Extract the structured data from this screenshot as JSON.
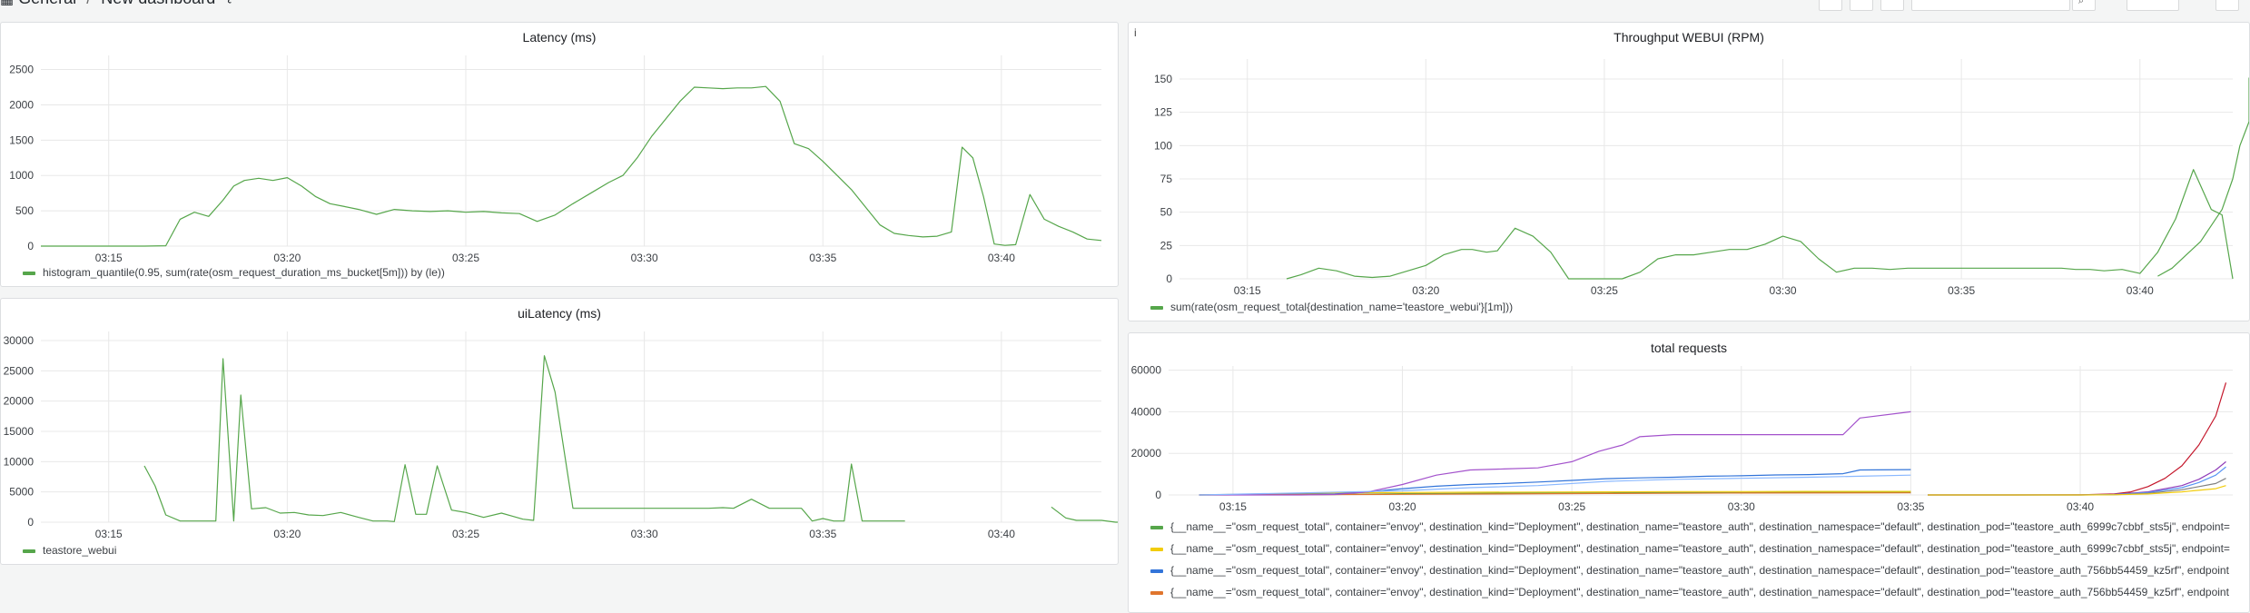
{
  "header": {
    "breadcrumb_folder": "General",
    "breadcrumb_separator": "/",
    "breadcrumb_title": "New dashboard",
    "share_icon": "share-icon",
    "search_icon": "search-icon"
  },
  "panels": {
    "latency": {
      "title": "Latency (ms)",
      "legend": "histogram_quantile(0.95, sum(rate(osm_request_duration_ms_bucket[5m])) by (le))"
    },
    "throughput": {
      "info": "i",
      "title": "Throughput WEBUI (RPM)",
      "legend": "sum(rate(osm_request_total{destination_name='teastore_webui'}[1m]))"
    },
    "uilatency": {
      "title": "uiLatency (ms)",
      "legend": "teastore_webui"
    },
    "total": {
      "title": "total requests",
      "legends": [
        "{__name__=\"osm_request_total\", container=\"envoy\", destination_kind=\"Deployment\", destination_name=\"teastore_auth\", destination_namespace=\"default\", destination_pod=\"teastore_auth_6999c7cbbf_sts5j\", endpoint=",
        "{__name__=\"osm_request_total\", container=\"envoy\", destination_kind=\"Deployment\", destination_name=\"teastore_auth\", destination_namespace=\"default\", destination_pod=\"teastore_auth_6999c7cbbf_sts5j\", endpoint=",
        "{__name__=\"osm_request_total\", container=\"envoy\", destination_kind=\"Deployment\", destination_name=\"teastore_auth\", destination_namespace=\"default\", destination_pod=\"teastore_auth_756bb54459_kz5rf\", endpoint",
        "{__name__=\"osm_request_total\", container=\"envoy\", destination_kind=\"Deployment\", destination_name=\"teastore_auth\", destination_namespace=\"default\", destination_pod=\"teastore_auth_756bb54459_kz5rf\", endpoint"
      ],
      "legend_colors": [
        "#56a64b",
        "#f2cc0c",
        "#3274d9",
        "#e0752d"
      ]
    }
  },
  "chart_data": [
    {
      "type": "line",
      "title": "Latency (ms)",
      "xlabel": "",
      "ylabel": "",
      "x_ticks": [
        "03:15",
        "03:20",
        "03:25",
        "03:30",
        "03:35",
        "03:40"
      ],
      "y_ticks": [
        0,
        500,
        1000,
        1500,
        2000,
        2500
      ],
      "ylim": [
        0,
        2700
      ],
      "xlim": [
        13.1,
        42.8
      ],
      "grid": true,
      "legend_position": "bottom-left",
      "series": [
        {
          "name": "histogram_quantile(0.95, sum(rate(osm_request_duration_ms_bucket[5m])) by (le))",
          "color": "#56a64b",
          "x": [
            13.1,
            15.0,
            16.0,
            16.6,
            17.0,
            17.4,
            17.8,
            18.2,
            18.5,
            18.8,
            19.2,
            19.6,
            20.0,
            20.4,
            20.8,
            21.2,
            21.6,
            22.0,
            22.5,
            23.0,
            23.5,
            24.0,
            24.5,
            25.0,
            25.5,
            26.0,
            26.5,
            27.0,
            27.5,
            28.0,
            28.5,
            29.0,
            29.4,
            29.8,
            30.2,
            30.6,
            31.0,
            31.4,
            31.8,
            32.2,
            32.6,
            33.0,
            33.4,
            33.8,
            34.2,
            34.6,
            35.0,
            35.4,
            35.8,
            36.2,
            36.6,
            37.0,
            37.4,
            37.8,
            38.2,
            38.6,
            38.9,
            39.2,
            39.5,
            39.8,
            40.1,
            40.4,
            40.8,
            41.2,
            41.6,
            42.0,
            42.4,
            42.8
          ],
          "values": [
            0,
            0,
            0,
            5,
            380,
            480,
            420,
            650,
            850,
            930,
            960,
            930,
            970,
            850,
            700,
            600,
            560,
            520,
            450,
            520,
            500,
            490,
            500,
            480,
            490,
            470,
            460,
            350,
            440,
            600,
            750,
            900,
            1000,
            1250,
            1550,
            1800,
            2050,
            2250,
            2240,
            2230,
            2240,
            2240,
            2260,
            2050,
            1450,
            1380,
            1200,
            1000,
            800,
            550,
            300,
            180,
            150,
            130,
            140,
            200,
            1400,
            1250,
            700,
            30,
            10,
            20,
            730,
            380,
            280,
            200,
            100,
            80
          ]
        }
      ]
    },
    {
      "type": "line",
      "title": "Throughput WEBUI (RPM)",
      "xlabel": "",
      "ylabel": "",
      "x_ticks": [
        "03:15",
        "03:20",
        "03:25",
        "03:30",
        "03:35",
        "03:40"
      ],
      "y_ticks": [
        0,
        25,
        50,
        75,
        100,
        125,
        150
      ],
      "ylim": [
        0,
        165
      ],
      "xlim": [
        13.1,
        42.6
      ],
      "grid": true,
      "legend_position": "bottom-left",
      "series": [
        {
          "name": "sum(rate(osm_request_total{destination_name='teastore_webui'}[1m]))",
          "color": "#56a64b",
          "segments": [
            {
              "x": [
                16.1,
                16.5,
                17.0,
                17.5,
                18.0,
                18.5,
                19.0,
                19.5,
                20.0,
                20.5,
                21.0,
                21.3,
                21.7,
                22.0,
                22.5,
                23.0,
                23.5,
                24.0,
                24.5,
                25.0,
                25.5,
                26.0,
                26.5,
                27.0,
                27.5,
                28.0,
                28.5,
                29.0,
                29.5,
                30.0,
                30.5,
                31.0,
                31.5,
                32.0,
                32.5,
                33.0,
                33.5,
                34.0,
                34.5,
                35.0,
                35.5,
                36.0,
                36.5,
                37.0,
                37.5,
                37.8,
                38.2,
                38.6,
                39.0,
                39.5,
                40.0,
                40.5,
                41.0,
                41.5,
                42.0,
                42.3,
                42.6
              ],
              "values": [
                0,
                3,
                8,
                6,
                2,
                1,
                2,
                6,
                10,
                18,
                22,
                22,
                20,
                21,
                38,
                32,
                20,
                0,
                0,
                0,
                0,
                5,
                15,
                18,
                18,
                20,
                22,
                22,
                26,
                32,
                28,
                15,
                5,
                8,
                8,
                7,
                8,
                8,
                8,
                8,
                8,
                8,
                8,
                8,
                8,
                8,
                7,
                7,
                6,
                7,
                4,
                20,
                45,
                82,
                52,
                48,
                0
              ]
            },
            {
              "x": [
                40.5,
                40.9,
                41.3,
                41.7,
                42.0,
                42.3,
                42.6,
                42.8,
                43.2,
                43.6,
                43.9,
                44.1,
                44.2
              ],
              "values": [
                2,
                8,
                18,
                28,
                40,
                52,
                75,
                100,
                118,
                140,
                150,
                151,
                151
              ]
            }
          ]
        }
      ]
    },
    {
      "type": "line",
      "title": "uiLatency (ms)",
      "xlabel": "",
      "ylabel": "",
      "x_ticks": [
        "03:15",
        "03:20",
        "03:25",
        "03:30",
        "03:35",
        "03:40"
      ],
      "y_ticks": [
        0,
        5000,
        10000,
        15000,
        20000,
        25000,
        30000
      ],
      "ylim": [
        0,
        31500
      ],
      "xlim": [
        13.1,
        42.8
      ],
      "grid": true,
      "legend_position": "bottom-left",
      "series": [
        {
          "name": "teastore_webui",
          "color": "#56a64b",
          "segments": [
            {
              "x": [
                16.0,
                16.3,
                16.6,
                17.0,
                17.4,
                17.8,
                18.0,
                18.2,
                18.5,
                18.7,
                19.0,
                19.4,
                19.8,
                20.2,
                20.6,
                21.0,
                21.5,
                22.0,
                22.4,
                22.8,
                23.0,
                23.3,
                23.6,
                23.9,
                24.2,
                24.6,
                25.0,
                25.5,
                26.0,
                26.3,
                26.6,
                26.9,
                27.2,
                27.5,
                28.0,
                29.0,
                30.0,
                31.0,
                31.5,
                31.8,
                32.2,
                32.5,
                33.0,
                33.5,
                33.8,
                34.1,
                34.4,
                34.7,
                35.0,
                35.3,
                35.6,
                35.8,
                36.1,
                36.5,
                36.9,
                37.3
              ],
              "values": [
                9300,
                6000,
                1200,
                200,
                200,
                200,
                200,
                27000,
                200,
                21000,
                2200,
                2400,
                1500,
                1600,
                1200,
                1100,
                1600,
                800,
                200,
                200,
                100,
                9500,
                1300,
                1300,
                9300,
                2000,
                1600,
                800,
                1500,
                1000,
                500,
                300,
                27500,
                21500,
                2300,
                2300,
                2300,
                2300,
                2300,
                2300,
                2400,
                2300,
                3800,
                2300,
                2300,
                2300,
                2300,
                200,
                600,
                200,
                200,
                9600,
                200,
                200,
                200,
                200
              ]
            },
            {
              "x": [
                41.4,
                41.8,
                42.1,
                42.4,
                42.8,
                43.2,
                43.6,
                44.0
              ],
              "values": [
                2500,
                700,
                300,
                300,
                300,
                0,
                0,
                0
              ]
            }
          ]
        }
      ]
    },
    {
      "type": "line",
      "title": "total requests",
      "xlabel": "",
      "ylabel": "",
      "x_ticks": [
        "03:15",
        "03:20",
        "03:25",
        "03:30",
        "03:35",
        "03:40"
      ],
      "y_ticks": [
        0,
        20000,
        40000,
        60000
      ],
      "ylim": [
        0,
        62000
      ],
      "xlim": [
        13.1,
        44.5
      ],
      "grid": true,
      "legend_position": "bottom-left",
      "series": [
        {
          "color": "#56a64b",
          "x": [
            14.0,
            18.0,
            20.0,
            22.0,
            24.0,
            26.0,
            28.0,
            30.0,
            32.0,
            34.0,
            35.0
          ],
          "values": [
            0,
            200,
            600,
            800,
            900,
            1000,
            1200,
            1200,
            1300,
            1300,
            1300
          ]
        },
        {
          "color": "#f2cc0c",
          "x": [
            14.0,
            17.0,
            18.0,
            20.0,
            22.0,
            24.0,
            26.0,
            28.0,
            30.0,
            32.0,
            34.0,
            35.0
          ],
          "values": [
            0,
            800,
            1000,
            1200,
            1300,
            1400,
            1500,
            1600,
            1600,
            1700,
            1700,
            1700
          ]
        },
        {
          "color": "#3274d9",
          "x": [
            14.0,
            18.0,
            19.0,
            20.0,
            21.0,
            22.0,
            23.0,
            24.0,
            25.0,
            26.0,
            27.0,
            28.0,
            29.0,
            30.0,
            31.0,
            32.0,
            33.0,
            33.5,
            35.0
          ],
          "values": [
            0,
            500,
            1500,
            3000,
            4200,
            5000,
            5500,
            6200,
            7000,
            7800,
            8200,
            8500,
            9000,
            9200,
            9600,
            9800,
            10200,
            12000,
            12200
          ]
        },
        {
          "color": "#e0752d",
          "x": [
            14.0,
            20.0,
            26.0,
            30.0,
            35.0
          ],
          "values": [
            0,
            300,
            700,
            900,
            1000
          ]
        },
        {
          "color": "#a352cc",
          "x": [
            14.0,
            17.0,
            18.0,
            19.0,
            20.0,
            21.0,
            22.0,
            23.0,
            24.0,
            25.0,
            25.8,
            26.5,
            27.0,
            28.0,
            29.0,
            30.0,
            31.0,
            32.0,
            33.0,
            33.5,
            35.0
          ],
          "values": [
            0,
            0,
            200,
            1500,
            5000,
            9500,
            12000,
            12500,
            13000,
            16000,
            21000,
            24000,
            28000,
            29000,
            29000,
            29000,
            29000,
            29000,
            29000,
            37000,
            40000
          ]
        },
        {
          "color": "#8ab8ff",
          "x": [
            14.0,
            20.0,
            22.0,
            24.0,
            26.0,
            28.0,
            30.0,
            32.0,
            33.5,
            35.0
          ],
          "values": [
            0,
            2000,
            3500,
            4500,
            6500,
            7500,
            8000,
            8500,
            9000,
            9500
          ]
        },
        {
          "color": "#c4162a",
          "x": [
            35.5,
            38.0,
            40.0,
            41.0,
            41.5,
            42.0,
            42.5,
            43.0,
            43.5,
            44.0,
            44.3
          ],
          "values": [
            0,
            0,
            100,
            500,
            1500,
            4000,
            8000,
            14000,
            24000,
            38000,
            54000
          ]
        },
        {
          "color": "#8f3bb8",
          "x": [
            35.5,
            40.0,
            41.0,
            42.0,
            43.0,
            43.5,
            44.0,
            44.3
          ],
          "values": [
            0,
            0,
            300,
            1500,
            4500,
            7500,
            12000,
            16000
          ]
        },
        {
          "color": "#5794f2",
          "x": [
            35.5,
            40.0,
            41.0,
            42.0,
            43.0,
            43.5,
            44.0,
            44.3
          ],
          "values": [
            0,
            0,
            200,
            1200,
            3500,
            6000,
            9500,
            13500
          ]
        },
        {
          "color": "#808080",
          "x": [
            35.5,
            40.0,
            41.0,
            42.0,
            43.0,
            44.0,
            44.3
          ],
          "values": [
            0,
            0,
            100,
            800,
            2500,
            5500,
            8000
          ]
        },
        {
          "color": "#f2cc0c",
          "x": [
            35.5,
            40.0,
            41.0,
            42.0,
            43.0,
            44.0,
            44.3
          ],
          "values": [
            0,
            0,
            100,
            500,
            1500,
            3000,
            4500
          ]
        }
      ]
    }
  ]
}
